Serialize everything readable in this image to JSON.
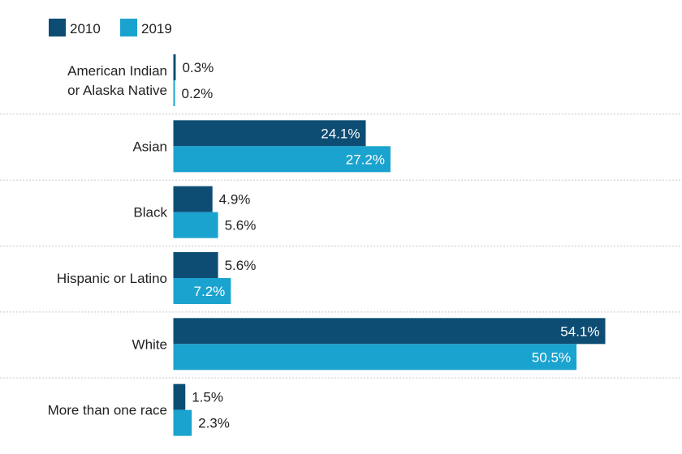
{
  "chart_data": {
    "type": "bar",
    "orientation": "horizontal",
    "categories": [
      [
        "American Indian",
        "or Alaska Native"
      ],
      [
        "Asian"
      ],
      [
        "Black"
      ],
      [
        "Hispanic or Latino"
      ],
      [
        "White"
      ],
      [
        "More than one race"
      ]
    ],
    "series": [
      {
        "name": "2010",
        "color": "#0d4d74",
        "values": [
          0.3,
          24.1,
          4.9,
          5.6,
          54.1,
          1.5
        ],
        "labels": [
          "0.3%",
          "24.1%",
          "4.9%",
          "5.6%",
          "54.1%",
          "1.5%"
        ]
      },
      {
        "name": "2019",
        "color": "#1aa3cf",
        "values": [
          0.2,
          27.2,
          5.6,
          7.2,
          50.5,
          2.3
        ],
        "labels": [
          "0.2%",
          "27.2%",
          "5.6%",
          "7.2%",
          "50.5%",
          "2.3%"
        ]
      }
    ],
    "legend_position": "top-left",
    "gridlines": "dotted separators between categories",
    "xlim": [
      0,
      63
    ]
  }
}
